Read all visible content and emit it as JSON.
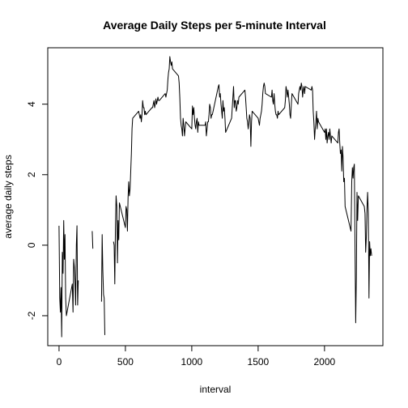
{
  "chart_data": {
    "type": "line",
    "title": "Average Daily Steps per 5-minute Interval",
    "xlabel": "interval",
    "ylabel": "average daily steps",
    "xlim": [
      -85,
      2440
    ],
    "ylim": [
      -2.85,
      5.6
    ],
    "xticks": [
      0,
      500,
      1000,
      1500,
      2000
    ],
    "yticks": [
      -2,
      0,
      2,
      4
    ],
    "grid": false,
    "legend": "none",
    "segments": [
      [
        [
          0,
          0.55
        ],
        [
          5,
          -1.5
        ],
        [
          10,
          -1.9
        ],
        [
          15,
          -1.2
        ],
        [
          20,
          -2.6
        ],
        [
          25,
          -0.2
        ],
        [
          30,
          -0.8
        ],
        [
          35,
          0.7
        ],
        [
          40,
          -0.4
        ],
        [
          45,
          0.3
        ],
        [
          50,
          -1.5
        ],
        [
          55,
          -2.0
        ],
        [
          100,
          -1.1
        ],
        [
          105,
          -1.9
        ],
        [
          110,
          -0.4
        ],
        [
          115,
          -0.6
        ],
        [
          120,
          -1.0
        ],
        [
          125,
          -1.7
        ],
        [
          130,
          0.0
        ],
        [
          135,
          0.55
        ],
        [
          140,
          -1.7
        ],
        [
          145,
          -1.0
        ]
      ],
      [
        [
          250,
          0.4
        ],
        [
          255,
          -0.1
        ]
      ],
      [
        [
          320,
          -1.6
        ],
        [
          325,
          0.3
        ],
        [
          330,
          -0.7
        ],
        [
          335,
          -1.4
        ],
        [
          340,
          -1.5
        ],
        [
          345,
          -2.55
        ]
      ],
      [
        [
          410,
          0.1
        ],
        [
          415,
          0.0
        ],
        [
          420,
          -1.1
        ],
        [
          425,
          0.5
        ],
        [
          430,
          1.4
        ],
        [
          435,
          1.1
        ],
        [
          440,
          -0.5
        ],
        [
          445,
          0.7
        ],
        [
          450,
          0.15
        ],
        [
          455,
          1.2
        ],
        [
          500,
          0.5
        ],
        [
          505,
          1.1
        ],
        [
          510,
          1.0
        ],
        [
          515,
          0.4
        ],
        [
          520,
          1.35
        ],
        [
          525,
          1.8
        ],
        [
          530,
          1.4
        ],
        [
          535,
          1.6
        ],
        [
          540,
          2.1
        ],
        [
          545,
          2.6
        ],
        [
          550,
          3.3
        ],
        [
          555,
          3.6
        ],
        [
          600,
          3.8
        ],
        [
          605,
          3.7
        ],
        [
          610,
          3.6
        ],
        [
          615,
          3.7
        ],
        [
          620,
          3.5
        ],
        [
          625,
          3.7
        ],
        [
          630,
          4.1
        ],
        [
          635,
          3.9
        ],
        [
          640,
          3.9
        ],
        [
          645,
          3.7
        ],
        [
          650,
          3.8
        ],
        [
          655,
          3.7
        ],
        [
          700,
          3.9
        ],
        [
          705,
          3.9
        ],
        [
          710,
          4.0
        ],
        [
          715,
          4.1
        ],
        [
          720,
          3.9
        ],
        [
          725,
          4.0
        ],
        [
          730,
          4.15
        ],
        [
          735,
          4.0
        ],
        [
          740,
          4.1
        ],
        [
          745,
          4.2
        ],
        [
          750,
          4.1
        ],
        [
          755,
          4.1
        ],
        [
          800,
          4.3
        ],
        [
          805,
          4.2
        ],
        [
          810,
          4.3
        ],
        [
          815,
          4.4
        ],
        [
          820,
          4.7
        ],
        [
          825,
          4.9
        ],
        [
          830,
          5.0
        ],
        [
          835,
          5.35
        ],
        [
          840,
          5.2
        ],
        [
          845,
          5.1
        ],
        [
          850,
          5.2
        ],
        [
          855,
          5.0
        ],
        [
          900,
          4.8
        ],
        [
          905,
          4.6
        ],
        [
          910,
          4.2
        ],
        [
          915,
          3.6
        ],
        [
          920,
          3.4
        ],
        [
          925,
          3.3
        ],
        [
          930,
          3.1
        ],
        [
          935,
          3.6
        ],
        [
          940,
          3.4
        ],
        [
          945,
          3.1
        ],
        [
          950,
          3.3
        ],
        [
          955,
          3.5
        ],
        [
          1000,
          3.3
        ],
        [
          1005,
          3.95
        ],
        [
          1010,
          3.7
        ],
        [
          1015,
          3.9
        ],
        [
          1020,
          3.6
        ],
        [
          1025,
          3.4
        ],
        [
          1030,
          3.3
        ],
        [
          1035,
          3.5
        ],
        [
          1040,
          3.6
        ],
        [
          1045,
          3.2
        ],
        [
          1050,
          3.5
        ],
        [
          1055,
          3.4
        ],
        [
          1100,
          3.4
        ],
        [
          1105,
          3.5
        ],
        [
          1110,
          3.1
        ],
        [
          1115,
          3.3
        ],
        [
          1120,
          3.5
        ],
        [
          1125,
          3.5
        ],
        [
          1130,
          3.7
        ],
        [
          1135,
          4.0
        ],
        [
          1140,
          3.9
        ],
        [
          1145,
          3.6
        ],
        [
          1150,
          3.7
        ],
        [
          1155,
          3.7
        ],
        [
          1200,
          4.5
        ],
        [
          1205,
          4.55
        ],
        [
          1210,
          4.2
        ],
        [
          1215,
          4.3
        ],
        [
          1220,
          4.0
        ],
        [
          1225,
          3.8
        ],
        [
          1230,
          3.6
        ],
        [
          1235,
          4.1
        ],
        [
          1240,
          3.8
        ],
        [
          1245,
          3.9
        ],
        [
          1250,
          3.6
        ],
        [
          1255,
          3.2
        ],
        [
          1300,
          3.6
        ],
        [
          1305,
          3.9
        ],
        [
          1310,
          4.2
        ],
        [
          1315,
          4.5
        ],
        [
          1320,
          3.9
        ],
        [
          1325,
          4.1
        ],
        [
          1330,
          4.1
        ],
        [
          1335,
          3.8
        ],
        [
          1340,
          3.9
        ],
        [
          1345,
          4.1
        ],
        [
          1350,
          4.0
        ],
        [
          1355,
          4.2
        ],
        [
          1400,
          4.4
        ],
        [
          1405,
          4.2
        ],
        [
          1410,
          3.9
        ],
        [
          1415,
          3.6
        ],
        [
          1420,
          3.5
        ],
        [
          1425,
          3.3
        ],
        [
          1430,
          3.5
        ],
        [
          1435,
          3.7
        ],
        [
          1440,
          3.6
        ],
        [
          1445,
          2.8
        ],
        [
          1450,
          3.5
        ],
        [
          1455,
          3.8
        ],
        [
          1500,
          3.6
        ],
        [
          1505,
          3.5
        ],
        [
          1510,
          3.4
        ],
        [
          1515,
          3.6
        ],
        [
          1520,
          3.7
        ],
        [
          1525,
          3.8
        ],
        [
          1530,
          4.0
        ],
        [
          1535,
          4.3
        ],
        [
          1540,
          4.5
        ],
        [
          1545,
          4.6
        ],
        [
          1550,
          4.5
        ],
        [
          1555,
          4.3
        ],
        [
          1600,
          4.2
        ],
        [
          1605,
          4.4
        ],
        [
          1610,
          4.1
        ],
        [
          1615,
          4.0
        ],
        [
          1620,
          4.3
        ],
        [
          1625,
          4.0
        ],
        [
          1630,
          3.8
        ],
        [
          1635,
          3.7
        ],
        [
          1640,
          3.7
        ],
        [
          1645,
          3.6
        ],
        [
          1650,
          3.8
        ],
        [
          1655,
          3.7
        ],
        [
          1700,
          3.9
        ],
        [
          1705,
          4.1
        ],
        [
          1710,
          4.5
        ],
        [
          1715,
          4.4
        ],
        [
          1720,
          4.2
        ],
        [
          1725,
          4.4
        ],
        [
          1730,
          4.2
        ],
        [
          1735,
          4.0
        ],
        [
          1740,
          3.7
        ],
        [
          1745,
          3.6
        ],
        [
          1750,
          4.0
        ],
        [
          1755,
          4.3
        ],
        [
          1800,
          4.0
        ],
        [
          1805,
          4.3
        ],
        [
          1810,
          4.4
        ],
        [
          1815,
          4.5
        ],
        [
          1820,
          4.4
        ],
        [
          1825,
          4.6
        ],
        [
          1830,
          4.5
        ],
        [
          1835,
          4.2
        ],
        [
          1840,
          4.4
        ],
        [
          1845,
          4.5
        ],
        [
          1850,
          4.3
        ],
        [
          1855,
          4.5
        ],
        [
          1900,
          4.4
        ],
        [
          1905,
          4.5
        ],
        [
          1910,
          4.4
        ],
        [
          1915,
          3.8
        ],
        [
          1920,
          3.5
        ],
        [
          1925,
          3.0
        ],
        [
          1930,
          3.3
        ],
        [
          1935,
          3.5
        ],
        [
          1940,
          3.8
        ],
        [
          1945,
          3.3
        ],
        [
          1950,
          3.6
        ],
        [
          1955,
          3.5
        ],
        [
          2000,
          3.2
        ],
        [
          2005,
          3.3
        ],
        [
          2010,
          3.0
        ],
        [
          2015,
          3.3
        ],
        [
          2020,
          2.9
        ],
        [
          2025,
          3.1
        ],
        [
          2030,
          3.2
        ],
        [
          2035,
          3.0
        ],
        [
          2040,
          3.3
        ],
        [
          2045,
          3.1
        ],
        [
          2050,
          2.9
        ],
        [
          2055,
          3.1
        ],
        [
          2100,
          2.9
        ],
        [
          2105,
          3.2
        ],
        [
          2110,
          3.3
        ],
        [
          2115,
          2.9
        ],
        [
          2120,
          2.6
        ],
        [
          2125,
          2.7
        ],
        [
          2130,
          2.1
        ],
        [
          2135,
          2.8
        ],
        [
          2140,
          2.5
        ],
        [
          2145,
          1.8
        ],
        [
          2150,
          1.9
        ],
        [
          2155,
          1.1
        ],
        [
          2200,
          0.4
        ],
        [
          2205,
          1.8
        ],
        [
          2210,
          2.2
        ],
        [
          2215,
          1.9
        ],
        [
          2220,
          2.2
        ],
        [
          2225,
          2.3
        ],
        [
          2230,
          -0.2
        ],
        [
          2235,
          -2.2
        ],
        [
          2240,
          -0.9
        ],
        [
          2245,
          1.5
        ],
        [
          2250,
          0.7
        ],
        [
          2255,
          1.4
        ],
        [
          2300,
          1.1
        ],
        [
          2305,
          0.9
        ],
        [
          2310,
          -0.2
        ],
        [
          2315,
          0.2
        ],
        [
          2320,
          1.0
        ],
        [
          2325,
          1.5
        ],
        [
          2330,
          0.9
        ],
        [
          2335,
          -1.5
        ],
        [
          2340,
          0.1
        ],
        [
          2345,
          -0.3
        ],
        [
          2350,
          -0.1
        ],
        [
          2355,
          -0.3
        ]
      ]
    ]
  }
}
